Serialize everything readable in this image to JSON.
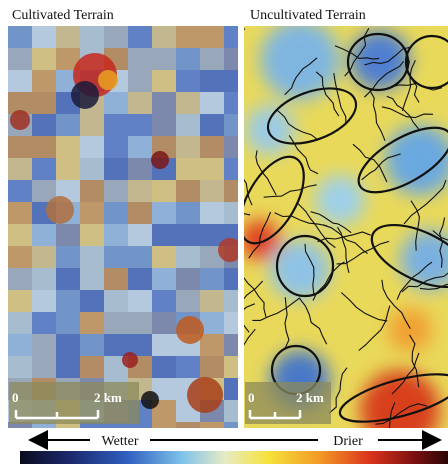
{
  "panels": [
    {
      "title": "Cultivated Terrain",
      "scale_bar": {
        "start": "0",
        "end": "2 km"
      }
    },
    {
      "title": "Uncultivated Terrain",
      "scale_bar": {
        "start": "0",
        "end": "2 km"
      }
    }
  ],
  "color_bar": {
    "left_label": "Wetter",
    "right_label": "Drier"
  }
}
